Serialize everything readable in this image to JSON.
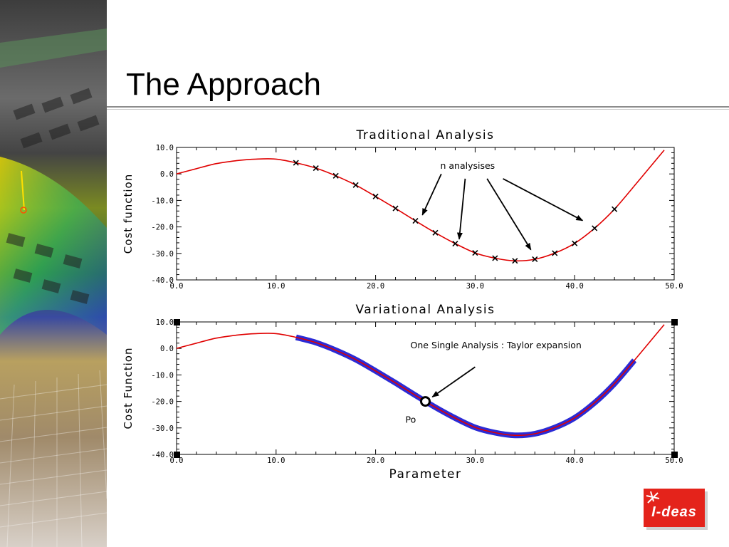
{
  "slide": {
    "title": "The Approach",
    "logo_text": "I-deas"
  },
  "colors": {
    "curve": "#e00000",
    "highlight": "#2b2bd6",
    "axis": "#000000"
  },
  "chart_data": [
    {
      "type": "line",
      "title": "Traditional Analysis",
      "xlabel": "",
      "ylabel": "Cost function",
      "xlim": [
        0,
        50
      ],
      "ylim": [
        -40,
        10
      ],
      "xticks": [
        "0.0",
        "10.0",
        "20.0",
        "30.0",
        "40.0",
        "50.0"
      ],
      "yticks": [
        "10.0",
        "0.0",
        "-10.0",
        "-20.0",
        "-30.0",
        "-40.0"
      ],
      "curve": {
        "x": [
          0,
          2,
          4,
          6,
          8,
          10,
          12,
          14,
          16,
          18,
          20,
          22,
          24,
          26,
          28,
          30,
          32,
          34,
          36,
          38,
          40,
          42,
          44,
          46,
          48,
          49
        ],
        "y": [
          0,
          2,
          3.9,
          5,
          5.6,
          5.6,
          4.2,
          2.2,
          -0.7,
          -4.2,
          -8.5,
          -13,
          -17.7,
          -22.2,
          -26.3,
          -29.8,
          -31.8,
          -32.8,
          -32.2,
          -29.9,
          -26.2,
          -20.5,
          -13.3,
          -4.5,
          4.5,
          9
        ]
      },
      "markers": {
        "x": [
          12,
          14,
          16,
          18,
          20,
          22,
          24,
          26,
          28,
          30,
          32,
          34,
          36,
          38,
          40,
          42,
          44
        ],
        "y": [
          4.2,
          2.2,
          -0.7,
          -4.2,
          -8.5,
          -13,
          -17.7,
          -22.2,
          -26.3,
          -29.8,
          -31.8,
          -32.8,
          -32.2,
          -29.9,
          -26.2,
          -20.5,
          -13.3
        ]
      },
      "annotation": {
        "text": "n analysises",
        "x": 26.5,
        "y": 2,
        "arrows": [
          {
            "from": [
              26.6,
              0
            ],
            "to": [
              24.7,
              -15.5
            ]
          },
          {
            "from": [
              29,
              -1.8
            ],
            "to": [
              28.4,
              -24.6
            ]
          },
          {
            "from": [
              31.2,
              -1.8
            ],
            "to": [
              35.6,
              -28.6
            ]
          },
          {
            "from": [
              32.8,
              -1.8
            ],
            "to": [
              40.8,
              -17.6
            ]
          }
        ]
      }
    },
    {
      "type": "line",
      "title": "Variational Analysis",
      "xlabel": "Parameter",
      "ylabel": "Cost Function",
      "xlim": [
        0,
        50
      ],
      "ylim": [
        -40,
        10
      ],
      "xticks": [
        "0.0",
        "10.0",
        "20.0",
        "30.0",
        "40.0",
        "50.0"
      ],
      "yticks": [
        "10.0",
        "0.0",
        "-10.0",
        "-20.0",
        "-30.0",
        "-40.0"
      ],
      "curve": {
        "x": [
          0,
          2,
          4,
          6,
          8,
          10,
          12,
          14,
          16,
          18,
          20,
          22,
          24,
          26,
          28,
          30,
          32,
          34,
          36,
          38,
          40,
          42,
          44,
          46,
          48,
          49
        ],
        "y": [
          0,
          2,
          3.9,
          5,
          5.6,
          5.6,
          4.2,
          2.2,
          -0.7,
          -4.2,
          -8.5,
          -13,
          -17.7,
          -22.2,
          -26.3,
          -29.8,
          -31.8,
          -32.8,
          -32.2,
          -29.9,
          -26.2,
          -20.5,
          -13.3,
          -4.5,
          4.5,
          9
        ]
      },
      "highlight_range": [
        12,
        46
      ],
      "point": {
        "label": "Po",
        "x": 25,
        "y": -20
      },
      "annotation": {
        "text": "One Single Analysis : Taylor expansion",
        "x": 23.5,
        "y": 0,
        "arrows": [
          {
            "from": [
              30,
              -7
            ],
            "to": [
              25.7,
              -18.3
            ]
          }
        ]
      }
    }
  ]
}
